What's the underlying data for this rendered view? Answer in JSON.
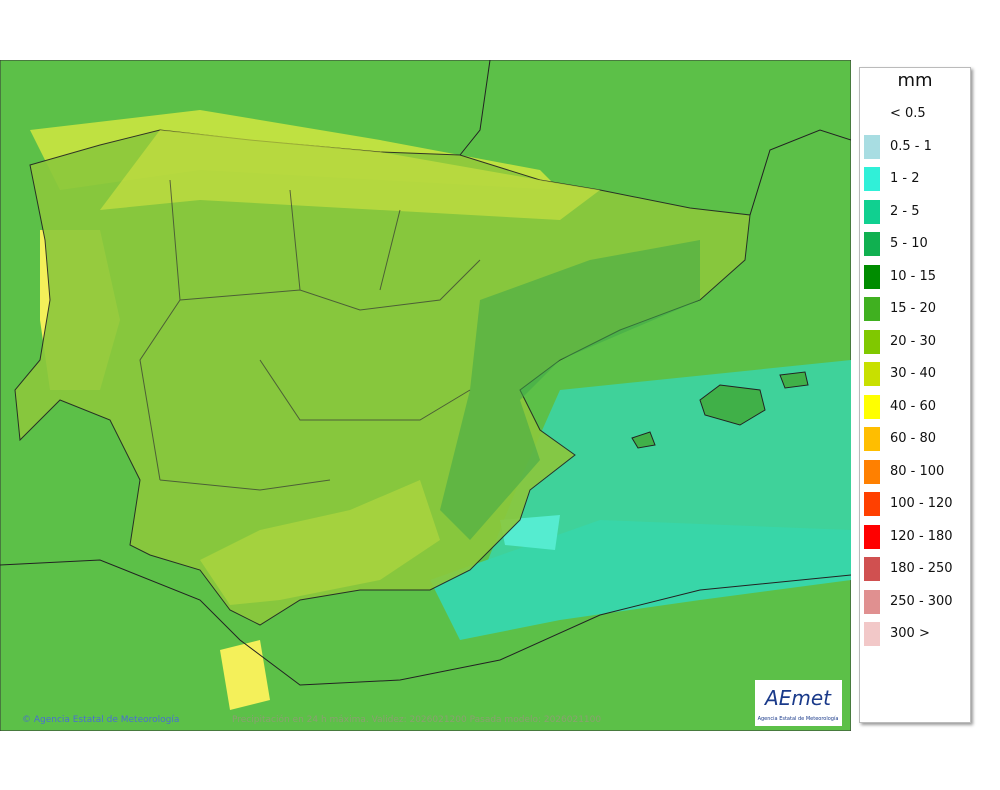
{
  "map": {
    "footer": {
      "credit": "© Agencia Estatal de Meteorología",
      "caption": "Precipitación en 24 h máxima. Validez: 2026021200 Pasada modelo: 2026021100"
    },
    "logo": {
      "name": "AEmet",
      "subtitle": "Agencia Estatal de Meteorología"
    },
    "legend": {
      "title": "mm",
      "items": [
        {
          "label": "< 0.5"
        },
        {
          "label": "0.5 - 1",
          "color": "#a8dde2"
        },
        {
          "label": "1 - 2",
          "color": "#30f0d8"
        },
        {
          "label": "2 - 5",
          "color": "#10d090"
        },
        {
          "label": "5 - 10",
          "color": "#10b050"
        },
        {
          "label": "10 - 15",
          "color": "#008c00"
        },
        {
          "label": "15 - 20",
          "color": "#40b020"
        },
        {
          "label": "20 - 30",
          "color": "#80c800"
        },
        {
          "label": "30 - 40",
          "color": "#c8e000"
        },
        {
          "label": "40 - 60",
          "color": "#ffff00"
        },
        {
          "label": "60 - 80",
          "color": "#ffbe00"
        },
        {
          "label": "80 - 100",
          "color": "#ff8000"
        },
        {
          "label": "100 - 120",
          "color": "#ff4000"
        },
        {
          "label": "120 - 180",
          "color": "#ff0000"
        },
        {
          "label": "180 - 250",
          "color": "#d05050"
        },
        {
          "label": "250 - 300",
          "color": "#e09090"
        },
        {
          "label": "300 >",
          "color": "#f2c8c8"
        }
      ]
    }
  }
}
